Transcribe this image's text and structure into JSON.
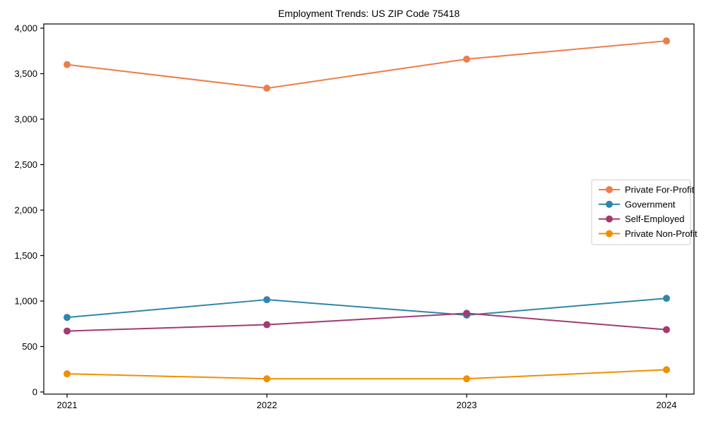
{
  "chart_data": {
    "type": "line",
    "title": "Employment Trends: US ZIP Code 75418",
    "x": [
      2021,
      2022,
      2023,
      2024
    ],
    "x_tick_labels": [
      "2021",
      "2022",
      "2023",
      "2024"
    ],
    "series": [
      {
        "name": "Private For-Profit",
        "color": "#ED7D4A",
        "values": [
          3600,
          3340,
          3660,
          3860
        ]
      },
      {
        "name": "Government",
        "color": "#2E86AB",
        "values": [
          820,
          1015,
          845,
          1030
        ]
      },
      {
        "name": "Self-Employed",
        "color": "#A23B72",
        "values": [
          670,
          740,
          865,
          685
        ]
      },
      {
        "name": "Private Non-Profit",
        "color": "#F18F01",
        "values": [
          200,
          145,
          145,
          245
        ]
      }
    ],
    "ylim": [
      0,
      4000
    ],
    "yticks": [
      0,
      500,
      1000,
      1500,
      2000,
      2500,
      3000,
      3500,
      4000
    ],
    "ytick_labels": [
      "0",
      "500",
      "1,000",
      "1,500",
      "2,000",
      "2,500",
      "3,000",
      "3,500",
      "4,000"
    ],
    "grid": false,
    "marker": "circle",
    "legend_position": "center-right",
    "background_color": "#ffffff",
    "axis_color": "#000000",
    "tick_label_color": "#000000",
    "legend_border_color": "#cccccc"
  }
}
